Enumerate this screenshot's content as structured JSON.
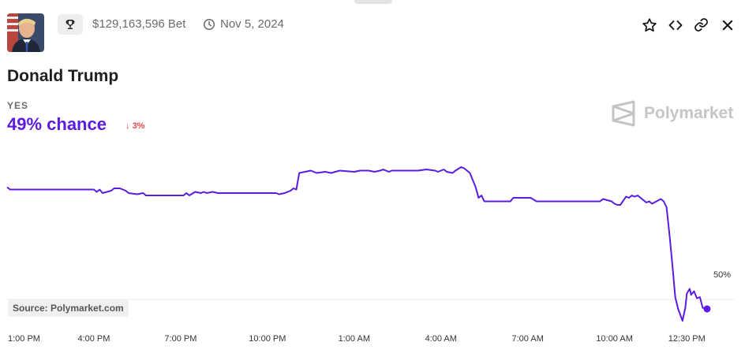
{
  "header": {
    "bet_amount": "$129,163,596 Bet",
    "date": "Nov 5, 2024",
    "icons": {
      "trophy": "trophy-icon",
      "clock": "clock-icon",
      "favorite": "star-icon",
      "embed": "code-icon",
      "copy_link": "link-icon",
      "close": "close-icon"
    }
  },
  "market": {
    "title": "Donald Trump",
    "outcome_label": "YES",
    "chance_text": "49% chance",
    "change_text": "3%",
    "change_direction": "down"
  },
  "brand": {
    "name": "Polymarket"
  },
  "source": "Source: Polymarket.com",
  "colors": {
    "line": "#5b1be0",
    "negative": "#e5484d",
    "brand": "#c5c5c5"
  },
  "chart_data": {
    "type": "line",
    "x_tick_labels": [
      "1:00 PM",
      "4:00 PM",
      "7:00 PM",
      "10:00 PM",
      "1:00 AM",
      "4:00 AM",
      "7:00 AM",
      "10:00 AM",
      "12:30 PM"
    ],
    "x_tick_hours": [
      0,
      3,
      6,
      9,
      12,
      15,
      18,
      21,
      23.5
    ],
    "y_gridline_label": "50%",
    "ylim": [
      48,
      62
    ],
    "series": [
      {
        "x": [
          0,
          0.1,
          3,
          3.1,
          3.2,
          3.3,
          3.6,
          3.7,
          3.9,
          4.1,
          4.2,
          4.5,
          4.7,
          4.8,
          5.1,
          5.3,
          6.1,
          6.2,
          6.3,
          6.5,
          6.7,
          6.8,
          6.9,
          7.1,
          7.3,
          7.4,
          7.5,
          9.3,
          9.4,
          9.6,
          9.8,
          9.9,
          10.0,
          10.1,
          10.3,
          10.5,
          10.7,
          11,
          11.2,
          11.5,
          12,
          12.2,
          12.5,
          12.7,
          12.9,
          13,
          13.2,
          13.3,
          13.5,
          13.8,
          14.2,
          14.5,
          14.8,
          14.9,
          15.1,
          15.2,
          15.4,
          15.5,
          15.7,
          15.8,
          16,
          16.2,
          16.3,
          16.4,
          16.5,
          16.6,
          17.4,
          17.5,
          17.7,
          17.9,
          18.1,
          18.3,
          20.5,
          20.6,
          20.9,
          21,
          21.1,
          21.2,
          21.4,
          21.5,
          21.6,
          21.7,
          21.8,
          22.1,
          22.2,
          22.3,
          22.6,
          22.7,
          22.8,
          22.9,
          23,
          23.1,
          23.2,
          23.35,
          23.45,
          23.5,
          23.6,
          23.65,
          23.75,
          23.85,
          23.95,
          24.05,
          24.2
        ],
        "y": [
          59.5,
          59.3,
          59.3,
          59.1,
          59.3,
          59.0,
          59.2,
          59.4,
          59.4,
          59.2,
          59.0,
          58.9,
          59.0,
          58.8,
          58.8,
          58.8,
          58.8,
          59.0,
          58.8,
          59.1,
          59.0,
          59.1,
          59.0,
          59.1,
          59.0,
          59.0,
          59.0,
          59.0,
          58.9,
          59.0,
          59.2,
          59.4,
          59.3,
          60.7,
          60.8,
          60.9,
          60.7,
          60.8,
          60.7,
          60.9,
          60.8,
          60.9,
          60.9,
          60.8,
          60.9,
          61.0,
          60.8,
          60.9,
          60.9,
          60.9,
          60.9,
          61.0,
          60.9,
          60.8,
          61.0,
          60.8,
          60.7,
          60.9,
          61.2,
          61.1,
          60.7,
          59.5,
          58.6,
          58.8,
          58.3,
          58.3,
          58.3,
          58.6,
          58.6,
          58.6,
          58.6,
          58.3,
          58.3,
          58.5,
          58.3,
          58.1,
          58.0,
          58.0,
          58.7,
          58.6,
          58.8,
          58.7,
          58.8,
          58.2,
          58.3,
          58.1,
          58.5,
          58.3,
          57.8,
          55.5,
          53.0,
          50.2,
          49.2,
          48.2,
          49.3,
          50.5,
          50.9,
          50.4,
          50.7,
          50.1,
          50.2,
          49.3,
          49.2
        ]
      }
    ],
    "grid": true,
    "legend": "none"
  }
}
